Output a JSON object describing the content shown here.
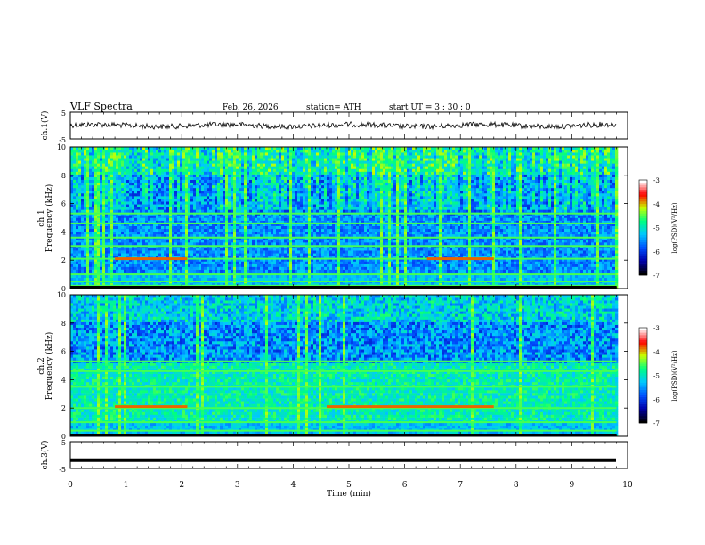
{
  "header": {
    "title": "VLF  Spectra",
    "date": "Feb. 26, 2026",
    "station": "station= ATH",
    "start": "start  UT  =    3  : 30 : 0"
  },
  "chart_data": [
    {
      "type": "line",
      "panel": "ch1-waveform",
      "ylabel": "ch.1(V)",
      "ylim": [
        -5,
        5
      ],
      "yticks": [
        "5",
        "-5"
      ],
      "xlim": [
        0,
        10
      ],
      "description_values": {
        "mean": 0.0,
        "amplitude_approx": 1.2
      }
    },
    {
      "type": "heatmap",
      "panel": "ch1-spectrogram",
      "ylabel_top": "ch.1",
      "ylabel": "Frequency  (kHz)",
      "ylim": [
        0,
        10
      ],
      "yticks": [
        "0",
        "2",
        "4",
        "6",
        "8",
        "10"
      ],
      "xlim": [
        0,
        10
      ],
      "colorbar": {
        "label": "log(PSD)(V²/Hz)",
        "range": [
          -7,
          -3
        ],
        "ticks": [
          "-3",
          "-4",
          "-5",
          "-6",
          "-7"
        ]
      },
      "bands_khz": [
        0.2,
        0.5,
        1.0,
        2.1,
        3.0,
        3.6,
        4.6,
        5.3
      ],
      "highlight_segments_min": [
        [
          0.8,
          2.1
        ],
        [
          6.4,
          7.6
        ]
      ]
    },
    {
      "type": "heatmap",
      "panel": "ch2-spectrogram",
      "ylabel_top": "ch.2",
      "ylabel": "Frequency  (kHz)",
      "ylim": [
        0,
        10
      ],
      "yticks": [
        "0",
        "2",
        "4",
        "6",
        "8",
        "10"
      ],
      "xlim": [
        0,
        10
      ],
      "colorbar": {
        "label": "log(PSD)(V²/Hz)",
        "range": [
          -7,
          -3
        ],
        "ticks": [
          "-3",
          "-4",
          "-5",
          "-6",
          "-7"
        ]
      },
      "bands_khz": [
        0.4,
        1.0,
        2.0,
        3.5,
        4.6,
        5.3
      ],
      "highlight_segments_min": [
        [
          0.8,
          2.1
        ],
        [
          4.6,
          6.4
        ],
        [
          6.4,
          7.6
        ]
      ]
    },
    {
      "type": "line",
      "panel": "ch3-waveform",
      "ylabel": "ch.3(V)",
      "ylim": [
        -5,
        5
      ],
      "yticks": [
        "5",
        "0",
        "-5"
      ],
      "xlim": [
        0,
        10
      ],
      "xlabel": "Time  (min)",
      "xticks": [
        "0",
        "1",
        "2",
        "3",
        "4",
        "5",
        "6",
        "7",
        "8",
        "9",
        "10"
      ],
      "description_values": {
        "constant_value": -1.9
      }
    }
  ],
  "colors": {
    "line": "#000000",
    "colormap": [
      "#000000",
      "#0000aa",
      "#0050ff",
      "#00c8ff",
      "#00ff80",
      "#c8ff00",
      "#ff0000",
      "#ffffff"
    ]
  }
}
